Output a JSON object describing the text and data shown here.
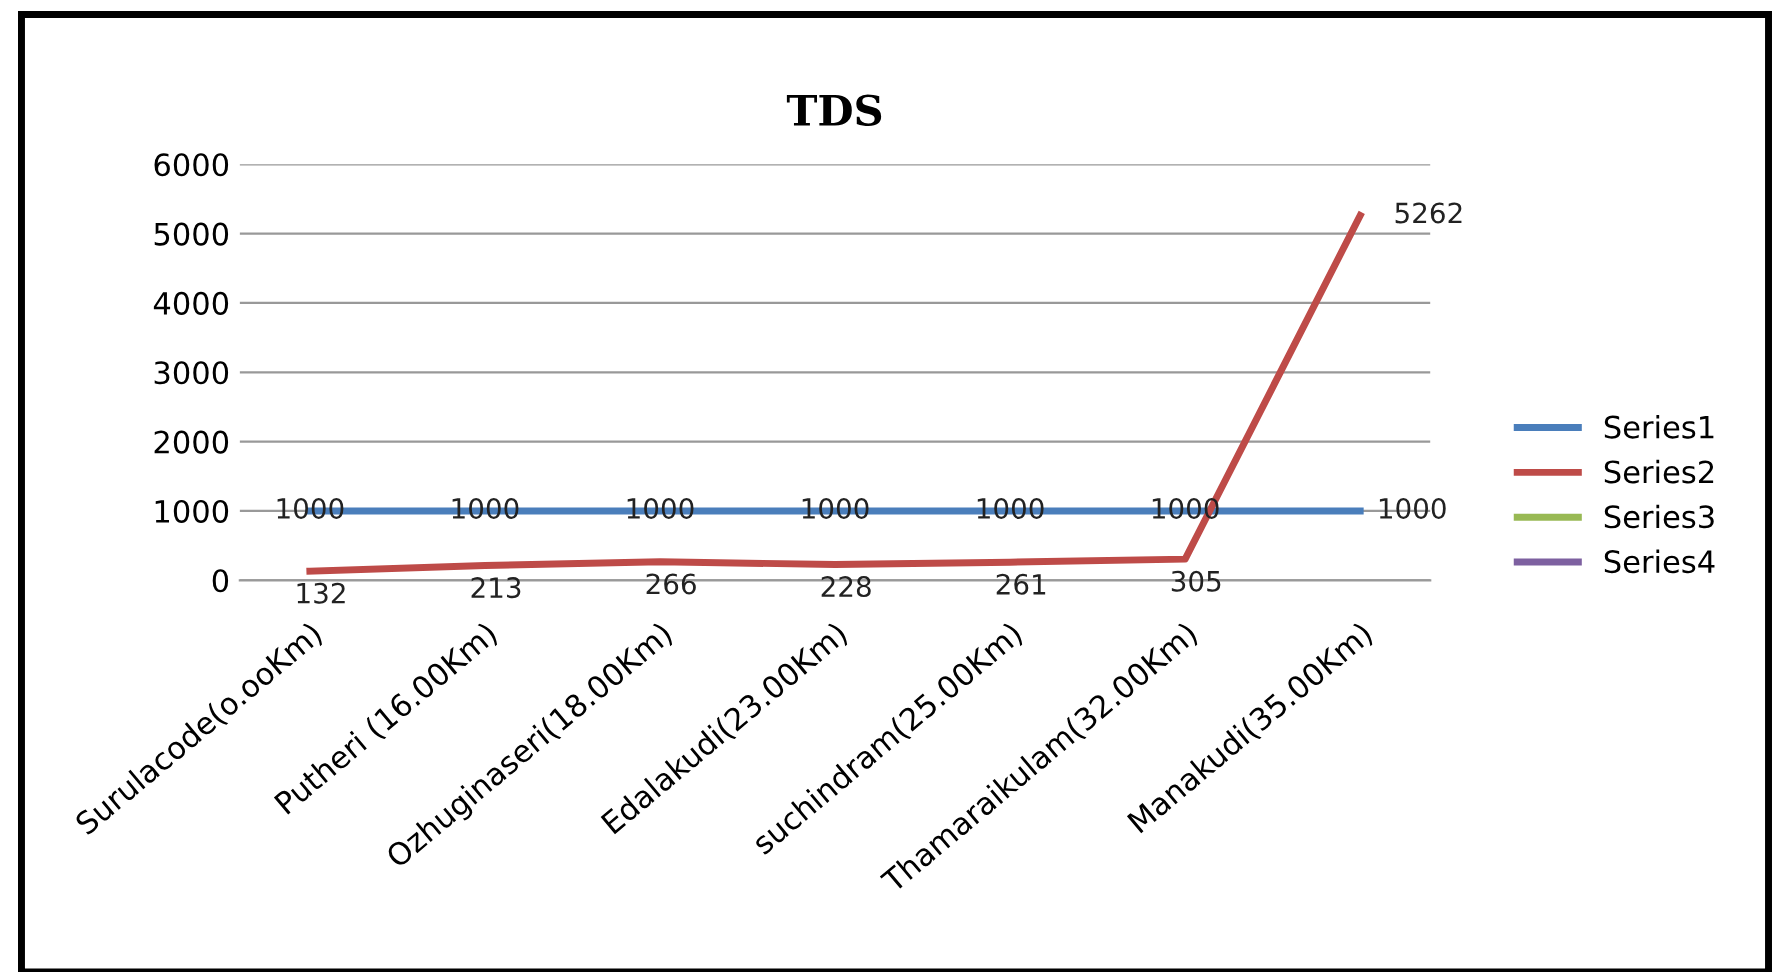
{
  "chart_data": {
    "type": "line",
    "title": "TDS",
    "categories": [
      "Surulacode(o.ooKm)",
      "Putheri (16.00Km)",
      "Ozhuginaseri(18.00Km)",
      "Edalakudi(23.00Km)",
      "suchindram(25.00Km)",
      "Thamaraikulam(32.00Km)",
      "Manakudi(35.00Km)"
    ],
    "series": [
      {
        "name": "Series1",
        "color": "#4a7ebb",
        "values": [
          1000,
          1000,
          1000,
          1000,
          1000,
          1000,
          1000
        ]
      },
      {
        "name": "Series2",
        "color": "#be4b48",
        "values": [
          132,
          213,
          266,
          228,
          261,
          305,
          5262
        ]
      },
      {
        "name": "Series3",
        "color": "#98b954",
        "values": [
          null,
          null,
          null,
          null,
          null,
          null,
          null
        ]
      },
      {
        "name": "Series4",
        "color": "#7d60a0",
        "values": [
          null,
          null,
          null,
          null,
          null,
          null,
          null
        ]
      }
    ],
    "ylim": [
      0,
      6000
    ],
    "yticks": [
      0,
      1000,
      2000,
      3000,
      4000,
      5000,
      6000
    ],
    "grid": "y",
    "legend": "right",
    "marker": "none",
    "line_style": "solid",
    "data_labels": true
  }
}
